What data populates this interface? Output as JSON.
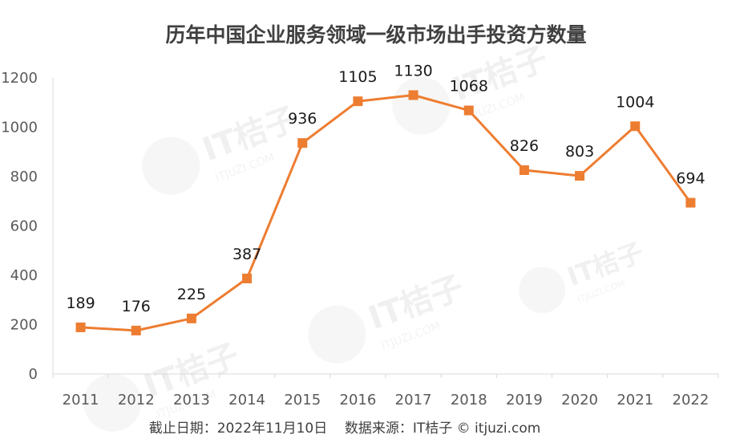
{
  "chart_data": {
    "type": "line",
    "title": "历年中国企业服务领域一级市场出手投资方数量",
    "xlabel": "",
    "ylabel": "",
    "categories": [
      "2011",
      "2012",
      "2013",
      "2014",
      "2015",
      "2016",
      "2017",
      "2018",
      "2019",
      "2020",
      "2021",
      "2022"
    ],
    "values": [
      189,
      176,
      225,
      387,
      936,
      1105,
      1130,
      1068,
      826,
      803,
      1004,
      694
    ],
    "ylim": [
      0,
      1200
    ],
    "yticks": [
      0,
      200,
      400,
      600,
      800,
      1000,
      1200
    ],
    "grid": false,
    "legend": "none",
    "line_color": "#ED7D31",
    "marker": "square"
  },
  "footer": {
    "text": "截止日期：2022年11月10日    数据来源：IT桔子 © itjuzi.com"
  },
  "watermark": {
    "brand": "IT桔子",
    "domain": "ITJUZI.COM"
  }
}
